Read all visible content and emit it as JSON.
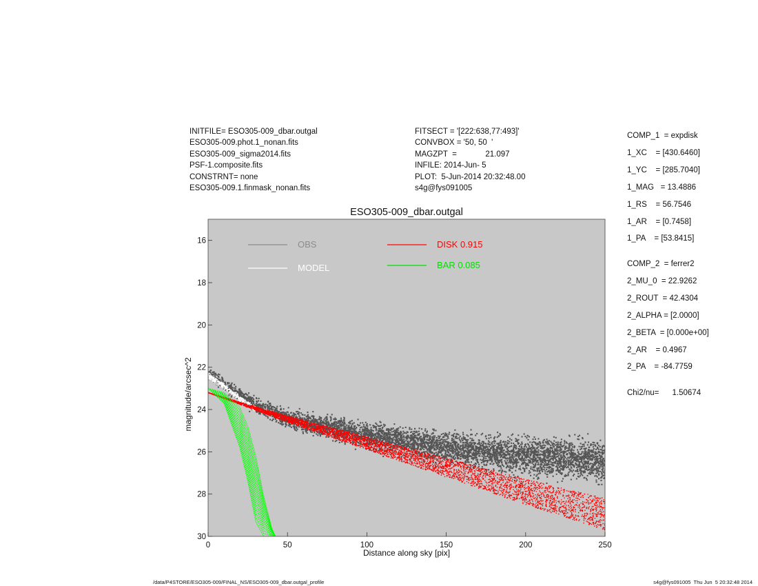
{
  "header": {
    "left_lines": [
      "INITFILE= ESO305-009_dbar.outgal",
      "ESO305-009.phot.1_nonan.fits",
      "ESO305-009_sigma2014.fits",
      "PSF-1.composite.fits",
      "CONSTRNT= none",
      "ESO305-009.1.finmask_nonan.fits"
    ],
    "middle_lines": [
      "FITSECT = '[222:638,77:493]'",
      "CONVBOX = '50, 50  '",
      "MAGZPT  =             21.097",
      "INFILE: 2014-Jun- 5",
      "PLOT:  5-Jun-2014 20:32:48.00",
      "s4g@fys091005"
    ]
  },
  "params": {
    "comp1": [
      "COMP_1  = expdisk",
      "1_XC    = [430.6460]",
      "1_YC    = [285.7040]",
      "1_MAG   = 13.4886",
      "1_RS    = 56.7546",
      "1_AR    = [0.7458]",
      "1_PA    = [53.8415]"
    ],
    "comp2": [
      "COMP_2  = ferrer2",
      "2_MU_0  = 22.9262",
      "2_ROUT  = 42.4304",
      "2_ALPHA = [2.0000]",
      "2_BETA  = [0.000e+00]",
      "2_AR    = 0.4967",
      "2_PA    = -84.7759"
    ],
    "chi2": "Chi2/nu=      1.50674"
  },
  "footer": {
    "left": "/data/P4STORE/ESO305-009/FINAL_NS/ESO305-009_dbar.outgal_profile",
    "right": "s4g@fys091005  Thu Jun  5 20:32:48 2014"
  },
  "chart_data": {
    "type": "scatter",
    "title": "ESO305-009_dbar.outgal",
    "xlabel": "Distance along sky [pix]",
    "ylabel": "magnitude/arcsec^2",
    "xlim": [
      0,
      250
    ],
    "ylim": [
      30,
      15
    ],
    "y_reversed": true,
    "x_ticks": [
      0,
      50,
      100,
      150,
      200,
      250
    ],
    "y_ticks": [
      16,
      18,
      20,
      22,
      24,
      26,
      28,
      30
    ],
    "grid": false,
    "background": "#c8c8c8",
    "legend": [
      {
        "label": "OBS",
        "color": "#8c8c8c"
      },
      {
        "label": "MODEL",
        "color": "#ffffff"
      },
      {
        "label": "DISK  0.915",
        "color": "#ff0000"
      },
      {
        "label": "BAR  0.085",
        "color": "#00e000"
      }
    ],
    "series": [
      {
        "name": "OBS",
        "color": "#555555",
        "x": [
          0,
          10,
          20,
          30,
          50,
          100,
          150,
          200,
          250
        ],
        "y": [
          22.3,
          22.8,
          23.3,
          23.8,
          24.4,
          25.2,
          25.8,
          26.2,
          26.4
        ],
        "scatter_mag": 0.8
      },
      {
        "name": "MODEL",
        "color": "#ffffff",
        "x": [
          0,
          10,
          20,
          30
        ],
        "y": [
          22.4,
          22.9,
          23.5,
          24.0
        ]
      },
      {
        "name": "DISK  0.915",
        "color": "#ff0000",
        "x": [
          0,
          50,
          100,
          150,
          200,
          250
        ],
        "y_upper": [
          23.2,
          24.3,
          25.3,
          26.3,
          27.3,
          28.2
        ],
        "y_lower": [
          23.2,
          24.6,
          25.9,
          27.2,
          28.5,
          29.7
        ]
      },
      {
        "name": "BAR  0.085",
        "color": "#00ff00",
        "x": [
          0,
          10,
          20,
          25,
          30,
          35,
          40,
          42.4
        ],
        "y_inner": [
          23.0,
          23.7,
          25.8,
          27.4,
          29.3,
          30.0,
          30.0,
          30.0
        ],
        "y_outer": [
          23.0,
          23.2,
          23.9,
          24.8,
          26.2,
          28.1,
          29.6,
          30.0
        ]
      }
    ]
  }
}
